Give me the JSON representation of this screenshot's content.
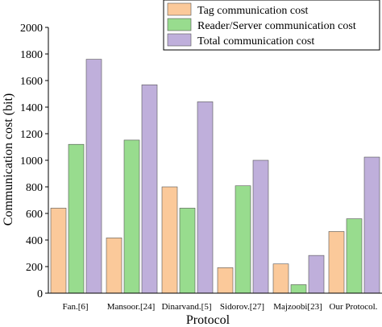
{
  "chart_data": {
    "type": "bar",
    "categories": [
      "Fan.[6]",
      "Mansoor.[24]",
      "Dinarvand.[5]",
      "Sidorov.[27]",
      "Majzoobi[23]",
      "Our Protocol."
    ],
    "series": [
      {
        "name": "Tag communication cost",
        "color": "#fbc99a",
        "values": [
          640,
          416,
          800,
          192,
          220,
          464
        ]
      },
      {
        "name": "Reader/Server communication cost",
        "color": "#98dc8e",
        "values": [
          1120,
          1152,
          640,
          808,
          64,
          560
        ]
      },
      {
        "name": "Total communication cost",
        "color": "#bfafdb",
        "values": [
          1760,
          1568,
          1440,
          1000,
          284,
          1024
        ]
      }
    ],
    "xlabel": "Protocol",
    "ylabel": "Communication cost (bit)",
    "ylim": [
      0,
      2000
    ],
    "yticks": [
      "0",
      "200",
      "400",
      "600",
      "800",
      "1000",
      "1200",
      "1400",
      "1600",
      "1800",
      "2000"
    ],
    "legend_position": "top-right",
    "grid": false
  }
}
